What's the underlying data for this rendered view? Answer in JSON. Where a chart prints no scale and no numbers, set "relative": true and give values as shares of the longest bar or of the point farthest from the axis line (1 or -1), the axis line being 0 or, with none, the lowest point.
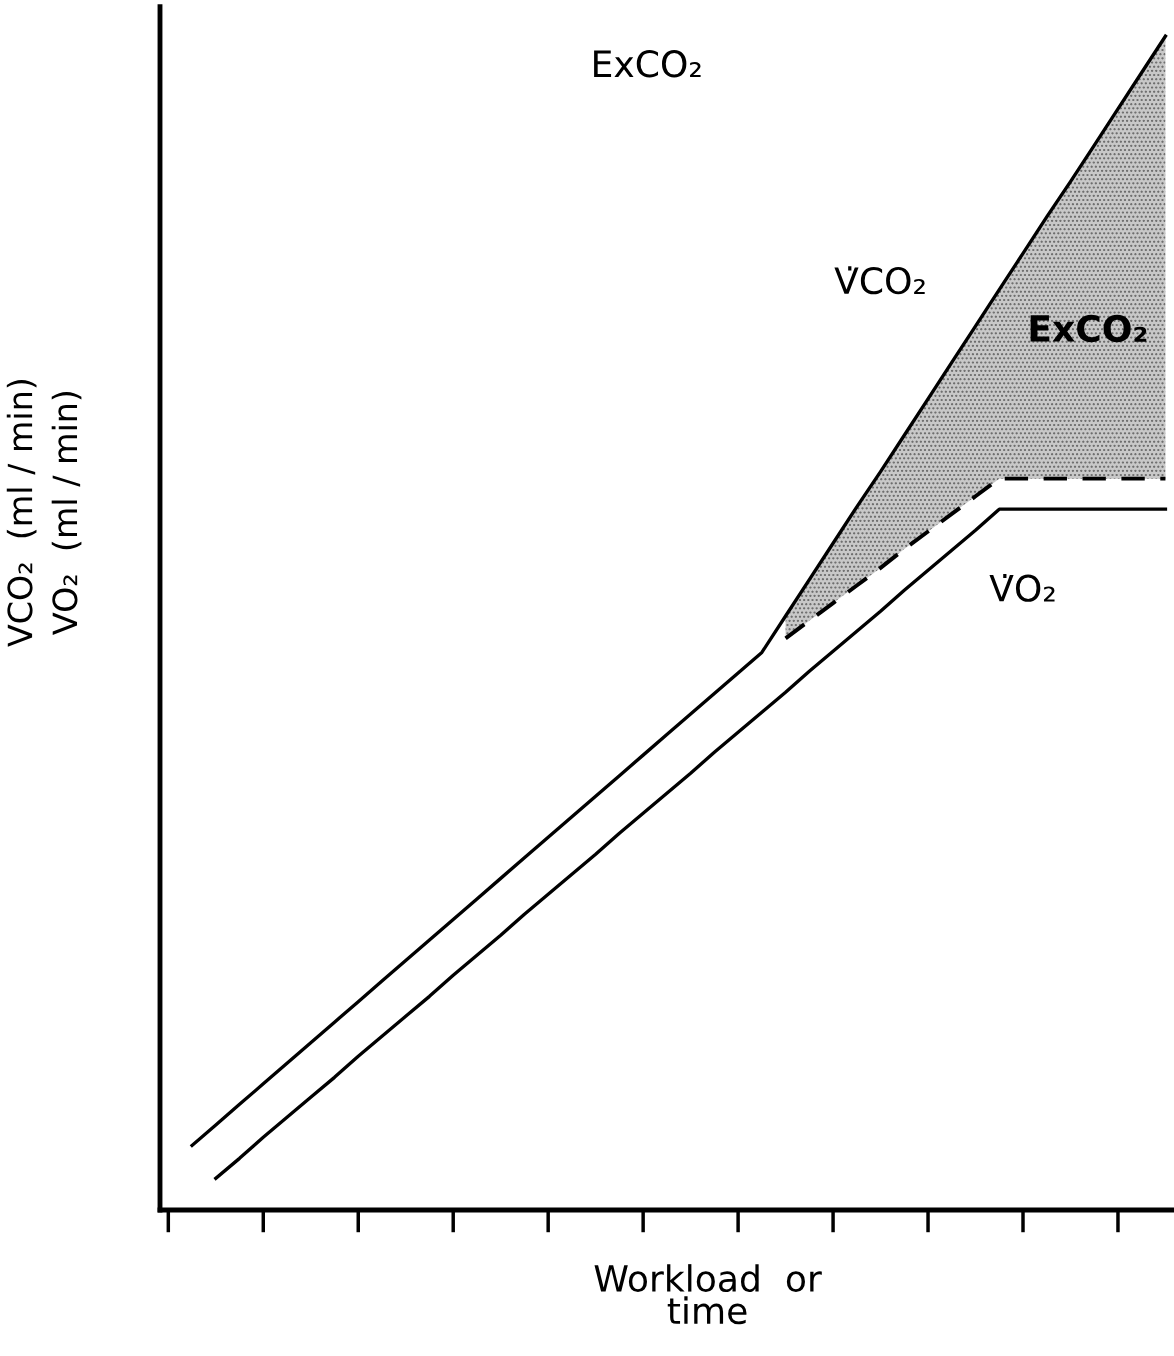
{
  "chart_data": {
    "type": "line",
    "relative": true,
    "xlabel": "Workload  or\ntime",
    "ylabel": "VCO₂  (ml / min)\nVO₂  (ml / min)",
    "categories": [
      null,
      null,
      null,
      null,
      null,
      null,
      null,
      null,
      null,
      null,
      null,
      null,
      null,
      null,
      null,
      null,
      null,
      null,
      null,
      null,
      null,
      null,
      null,
      null,
      null,
      null,
      null,
      null,
      null,
      null,
      null,
      null,
      null,
      null,
      null,
      null,
      null,
      null,
      null,
      null,
      null,
      null,
      null
    ],
    "series": [
      {
        "name": "V̇CO₂",
        "color": "#000000",
        "line_style": "solid",
        "values": [
          null,
          0.055,
          0.0725,
          0.09,
          0.1075,
          0.125,
          0.1425,
          0.16,
          0.1775,
          0.195,
          0.2125,
          0.23,
          0.2475,
          0.265,
          0.2825,
          0.3,
          0.3175,
          0.335,
          0.3525,
          0.37,
          0.3875,
          0.405,
          0.4225,
          0.44,
          0.4575,
          0.475,
          0.506,
          0.537,
          0.568,
          0.599,
          0.629,
          0.66,
          0.691,
          0.722,
          0.753,
          0.784,
          0.815,
          0.846,
          0.876,
          0.907,
          0.938,
          0.969,
          1.0
        ]
      },
      {
        "color": "#000000",
        "line_style": "dashed",
        "values": [
          null,
          null,
          null,
          null,
          null,
          null,
          null,
          null,
          null,
          null,
          null,
          null,
          null,
          null,
          null,
          null,
          null,
          null,
          null,
          null,
          null,
          null,
          null,
          null,
          null,
          null,
          0.487,
          0.502,
          0.517,
          0.532,
          0.547,
          0.563,
          0.578,
          0.593,
          0.608,
          0.623,
          0.623,
          0.623,
          0.623,
          0.623,
          0.623,
          0.623,
          0.623
        ],
        "lower": [
          null,
          null,
          null,
          null,
          null,
          null,
          null,
          null,
          null,
          null,
          null,
          null,
          null,
          null,
          null,
          null,
          null,
          null,
          null,
          null,
          null,
          null,
          null,
          null,
          null,
          null,
          0.487,
          0.502,
          0.517,
          0.532,
          0.547,
          0.563,
          0.578,
          0.593,
          0.608,
          0.623,
          0.623,
          0.623,
          0.623,
          0.623,
          0.623,
          0.623,
          0.623
        ],
        "upper": [
          null,
          null,
          null,
          null,
          null,
          null,
          null,
          null,
          null,
          null,
          null,
          null,
          null,
          null,
          null,
          null,
          null,
          null,
          null,
          null,
          null,
          null,
          null,
          null,
          null,
          null,
          0.506,
          0.537,
          0.568,
          0.599,
          0.629,
          0.66,
          0.691,
          0.722,
          0.753,
          0.784,
          0.815,
          0.846,
          0.876,
          0.907,
          0.938,
          0.969,
          1.0
        ]
      },
      {
        "name": "V̇O₂",
        "color": "#000000",
        "line_style": "solid",
        "values": [
          null,
          null,
          0.027,
          0.044,
          0.062,
          0.079,
          0.096,
          0.113,
          0.131,
          0.148,
          0.165,
          0.182,
          0.2,
          0.217,
          0.234,
          0.252,
          0.269,
          0.286,
          0.303,
          0.321,
          0.338,
          0.355,
          0.372,
          0.39,
          0.407,
          0.424,
          0.441,
          0.459,
          0.476,
          0.493,
          0.51,
          0.528,
          0.545,
          0.562,
          0.579,
          0.597,
          0.597,
          0.597,
          0.597,
          0.597,
          0.597,
          0.597,
          0.597
        ]
      }
    ],
    "annotations": [
      "ExCO₂",
      "ExCO₂"
    ],
    "legend": false,
    "grid": false
  }
}
